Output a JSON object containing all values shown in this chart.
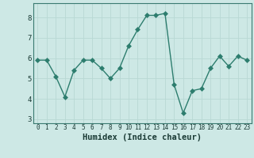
{
  "x": [
    0,
    1,
    2,
    3,
    4,
    5,
    6,
    7,
    8,
    9,
    10,
    11,
    12,
    13,
    14,
    15,
    16,
    17,
    18,
    19,
    20,
    21,
    22,
    23
  ],
  "y": [
    5.9,
    5.9,
    5.1,
    4.1,
    5.4,
    5.9,
    5.9,
    5.5,
    5.0,
    5.5,
    6.6,
    7.4,
    8.1,
    8.1,
    8.2,
    4.7,
    3.3,
    4.4,
    4.5,
    5.5,
    6.1,
    5.6,
    6.1,
    5.9
  ],
  "xlabel": "Humidex (Indice chaleur)",
  "line_color": "#2d7d6e",
  "bg_color": "#cde8e5",
  "grid_color": "#b8d8d4",
  "tick_color": "#1a3a35",
  "spine_color": "#3a7a70",
  "ylim": [
    2.8,
    8.7
  ],
  "xlim": [
    -0.5,
    23.5
  ],
  "yticks": [
    3,
    4,
    5,
    6,
    7,
    8
  ],
  "xticks": [
    0,
    1,
    2,
    3,
    4,
    5,
    6,
    7,
    8,
    9,
    10,
    11,
    12,
    13,
    14,
    15,
    16,
    17,
    18,
    19,
    20,
    21,
    22,
    23
  ],
  "marker_size": 3.0,
  "line_width": 1.0,
  "xlabel_fontsize": 7.5,
  "tick_fontsize_x": 5.5,
  "tick_fontsize_y": 6.5
}
